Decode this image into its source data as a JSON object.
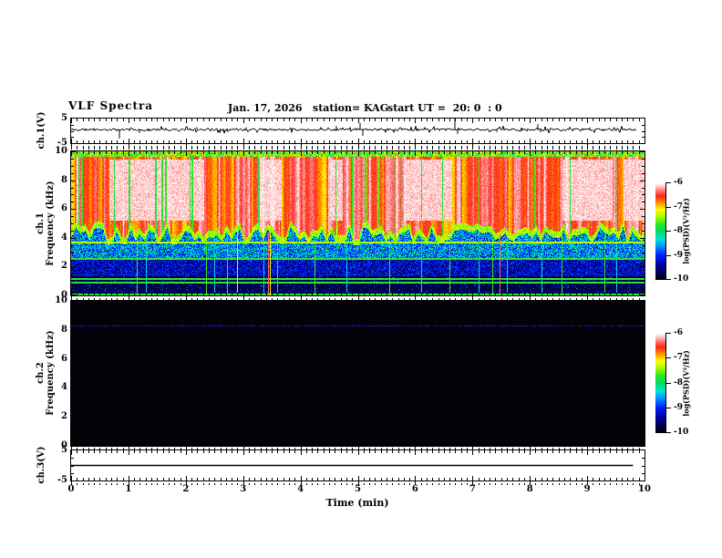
{
  "header": {
    "title": "VLF Spectra",
    "date": "Jan. 17, 2026",
    "station": "station= KAG",
    "start_ut": "start UT =  20: 0  : 0"
  },
  "xaxis": {
    "label": "Time (min)",
    "range": [
      0,
      10
    ],
    "ticks": [
      0,
      1,
      2,
      3,
      4,
      5,
      6,
      7,
      8,
      9,
      10
    ],
    "minor_step": 0.1
  },
  "colormap": {
    "stops": [
      [
        0.0,
        [
          0,
          0,
          14
        ]
      ],
      [
        0.06,
        [
          0,
          0,
          70
        ]
      ],
      [
        0.15,
        [
          0,
          0,
          160
        ]
      ],
      [
        0.25,
        [
          0,
          30,
          255
        ]
      ],
      [
        0.34,
        [
          0,
          140,
          255
        ]
      ],
      [
        0.42,
        [
          0,
          230,
          210
        ]
      ],
      [
        0.5,
        [
          0,
          220,
          90
        ]
      ],
      [
        0.57,
        [
          40,
          230,
          40
        ]
      ],
      [
        0.65,
        [
          170,
          250,
          0
        ]
      ],
      [
        0.72,
        [
          255,
          255,
          0
        ]
      ],
      [
        0.79,
        [
          255,
          150,
          0
        ]
      ],
      [
        0.86,
        [
          255,
          40,
          20
        ]
      ],
      [
        0.92,
        [
          255,
          120,
          120
        ]
      ],
      [
        0.96,
        [
          255,
          200,
          200
        ]
      ],
      [
        1.0,
        [
          255,
          255,
          255
        ]
      ]
    ]
  },
  "chart_data": [
    {
      "id": "ch1_voltage",
      "type": "line",
      "ylabel": "ch.1(V)",
      "ylim": [
        -5,
        5
      ],
      "yticks": [
        5,
        -5
      ],
      "x_range": [
        0,
        10
      ],
      "gen": {
        "seed": 11,
        "baseline": 0.5,
        "noise_amp": 0.45,
        "burst_prob": 0.18,
        "x_end": 9.85,
        "spikes": [
          [
            0.84,
            -3.6
          ],
          [
            1.2,
            -1.4
          ],
          [
            2.2,
            1.0
          ],
          [
            3.05,
            0.9
          ],
          [
            4.62,
            1.5
          ],
          [
            5.04,
            2.7
          ],
          [
            5.08,
            -2.5
          ],
          [
            6.7,
            4.7
          ],
          [
            6.74,
            -1.7
          ],
          [
            7.42,
            -1.0
          ],
          [
            8.14,
            2.2
          ],
          [
            8.18,
            -1.1
          ],
          [
            9.05,
            0.9
          ]
        ]
      }
    },
    {
      "id": "ch1_spectrogram",
      "type": "heatmap",
      "ylabel_lines": [
        "ch.1",
        "Frequency (kHz)"
      ],
      "ylim": [
        0,
        10
      ],
      "yticks": [
        10,
        8,
        6,
        4,
        2,
        0
      ],
      "y_minor_step": 0.5,
      "value_range": [
        -10,
        -6
      ],
      "gen": {
        "seed": 7,
        "top_edge_f": 9.62,
        "red_floor_base": 3.9,
        "red_floor_var": 1.3,
        "fringe_width": 0.45,
        "gap_prob": 0.05,
        "white_threshold": 0.62
      },
      "h_lines": [
        {
          "f": 3.65,
          "v": 0.62
        },
        {
          "f": 2.55,
          "v": 0.52
        },
        {
          "f": 1.15,
          "v": 0.52
        },
        {
          "f": 0.88,
          "v": 0.52
        },
        {
          "f": 0.04,
          "v": 0.52
        }
      ],
      "v_lines": [
        [
          1.15,
          0.55
        ],
        [
          1.3,
          0.38
        ],
        [
          2.35,
          0.55
        ],
        [
          2.5,
          0.38
        ],
        [
          2.72,
          0.55
        ],
        [
          2.9,
          0.7
        ],
        [
          3.35,
          0.38
        ],
        [
          3.43,
          0.88
        ],
        [
          3.47,
          0.7
        ],
        [
          3.6,
          0.38
        ],
        [
          4.25,
          0.55
        ],
        [
          4.8,
          0.38
        ],
        [
          5.55,
          0.55
        ],
        [
          6.1,
          0.38
        ],
        [
          6.6,
          0.55
        ],
        [
          7.1,
          0.38
        ],
        [
          7.35,
          0.55
        ],
        [
          7.48,
          0.88
        ],
        [
          7.6,
          0.38
        ],
        [
          8.2,
          0.38
        ],
        [
          8.55,
          0.55
        ],
        [
          9.3,
          0.55
        ],
        [
          9.5,
          0.38
        ]
      ],
      "colorbar": {
        "ticks": [
          "-6",
          "-7",
          "-8",
          "-9",
          "-10"
        ],
        "label": "log(PSD)(V²/Hz)"
      }
    },
    {
      "id": "ch2_spectrogram",
      "type": "heatmap",
      "ylabel_lines": [
        "ch.2",
        "Frequency (kHz)"
      ],
      "ylim": [
        0,
        10
      ],
      "yticks": [
        10,
        8,
        6,
        4,
        2,
        0
      ],
      "y_minor_step": 0.5,
      "value_range": [
        -10,
        -6
      ],
      "gen": {
        "seed": 5,
        "background": "black",
        "line_f": 8.3,
        "line_prob": 0.78,
        "top_speckle_prob": 0.22
      },
      "colorbar": {
        "ticks": [
          "-6",
          "-7",
          "-8",
          "-9",
          "-10"
        ],
        "label": "log(PSD)(V²/Hz)"
      }
    },
    {
      "id": "ch3_voltage",
      "type": "line",
      "ylabel": "ch.3(V)",
      "ylim": [
        -5,
        5
      ],
      "yticks": [
        5,
        -5
      ],
      "x_range": [
        0,
        10
      ],
      "gen": {
        "flat_value": 0,
        "x_extent": [
          0,
          9.8
        ]
      }
    }
  ]
}
